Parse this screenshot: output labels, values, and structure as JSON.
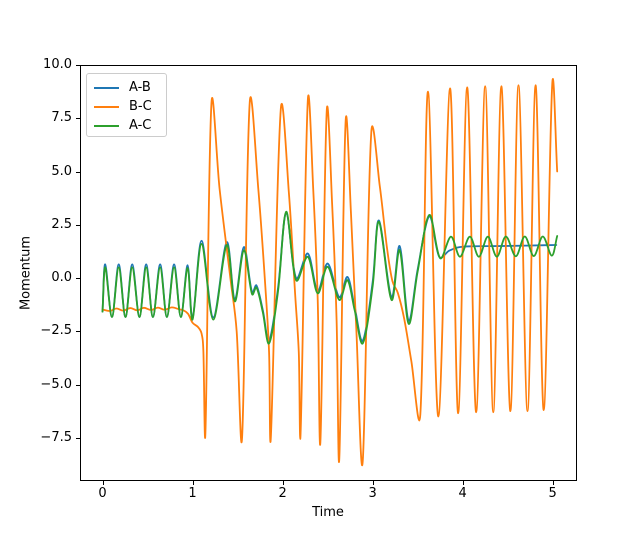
{
  "figure": {
    "background": "#ffffff"
  },
  "chart_data": {
    "type": "line",
    "title": "",
    "xlabel": "Time",
    "ylabel": "Momentum",
    "xlim": [
      -0.25,
      5.27
    ],
    "ylim": [
      -9.53,
      10.0
    ],
    "grid": false,
    "x_ticks": [
      0,
      1,
      2,
      3,
      4,
      5
    ],
    "x_tick_labels": [
      "0",
      "1",
      "2",
      "3",
      "4",
      "5"
    ],
    "y_ticks": [
      10.0,
      7.5,
      5.0,
      2.5,
      0.0,
      -2.5,
      -5.0,
      -7.5
    ],
    "y_tick_labels": [
      "10.0",
      "7.5",
      "5.0",
      "2.5",
      "0.0",
      "−2.5",
      "−5.0",
      "−7.5"
    ],
    "legend": {
      "position": "upper left",
      "entries": [
        "A-B",
        "B-C",
        "A-C"
      ]
    },
    "series": [
      {
        "name": "A-B",
        "color": "#1f77b4",
        "points": [
          [
            0,
            -1.58
          ],
          [
            0.03,
            0.64
          ],
          [
            0.105,
            -1.83
          ],
          [
            0.18,
            0.64
          ],
          [
            0.255,
            -1.83
          ],
          [
            0.33,
            0.64
          ],
          [
            0.41,
            -1.83
          ],
          [
            0.485,
            0.64
          ],
          [
            0.56,
            -1.83
          ],
          [
            0.64,
            0.64
          ],
          [
            0.715,
            -1.83
          ],
          [
            0.795,
            0.64
          ],
          [
            0.87,
            -1.83
          ],
          [
            0.945,
            0.6
          ],
          [
            1.0,
            -1.9
          ],
          [
            1.1,
            1.75
          ],
          [
            1.23,
            -1.85
          ],
          [
            1.38,
            1.68
          ],
          [
            1.47,
            -1.0
          ],
          [
            1.57,
            1.45
          ],
          [
            1.66,
            -0.65
          ],
          [
            1.71,
            -0.35
          ],
          [
            1.78,
            -1.5
          ],
          [
            1.85,
            -2.95
          ],
          [
            1.95,
            -0.45
          ],
          [
            2.04,
            3.06
          ],
          [
            2.15,
            0.0
          ],
          [
            2.28,
            1.15
          ],
          [
            2.39,
            -0.6
          ],
          [
            2.5,
            0.68
          ],
          [
            2.63,
            -0.9
          ],
          [
            2.72,
            0.05
          ],
          [
            2.8,
            -1.35
          ],
          [
            2.89,
            -2.95
          ],
          [
            3.0,
            -0.2
          ],
          [
            3.07,
            2.7
          ],
          [
            3.21,
            -0.9
          ],
          [
            3.3,
            1.5
          ],
          [
            3.4,
            -2.0
          ],
          [
            3.5,
            0.4
          ],
          [
            3.63,
            2.9
          ],
          [
            3.74,
            1.0
          ],
          [
            3.85,
            1.28
          ],
          [
            3.95,
            1.44
          ],
          [
            4.1,
            1.49
          ],
          [
            4.4,
            1.5
          ],
          [
            4.7,
            1.52
          ],
          [
            5.04,
            1.55
          ]
        ]
      },
      {
        "name": "B-C",
        "color": "#ff7f0e",
        "points": [
          [
            0,
            -1.48
          ],
          [
            0.08,
            -1.55
          ],
          [
            0.155,
            -1.43
          ],
          [
            0.23,
            -1.53
          ],
          [
            0.31,
            -1.41
          ],
          [
            0.385,
            -1.52
          ],
          [
            0.46,
            -1.4
          ],
          [
            0.54,
            -1.5
          ],
          [
            0.615,
            -1.39
          ],
          [
            0.69,
            -1.49
          ],
          [
            0.77,
            -1.38
          ],
          [
            0.845,
            -1.46
          ],
          [
            0.9,
            -1.52
          ],
          [
            0.95,
            -1.68
          ],
          [
            1.0,
            -2.1
          ],
          [
            1.06,
            -2.3
          ],
          [
            1.1,
            -2.6
          ],
          [
            1.12,
            -3.4
          ],
          [
            1.143,
            -7.26
          ],
          [
            1.21,
            8.2
          ],
          [
            1.3,
            4.2
          ],
          [
            1.42,
            0.0
          ],
          [
            1.49,
            -2.5
          ],
          [
            1.55,
            -7.5
          ],
          [
            1.635,
            8.23
          ],
          [
            1.73,
            4.2
          ],
          [
            1.81,
            -0.5
          ],
          [
            1.85,
            -3.5
          ],
          [
            1.87,
            -7.45
          ],
          [
            1.98,
            7.92
          ],
          [
            2.07,
            4.0
          ],
          [
            2.14,
            -0.8
          ],
          [
            2.18,
            -3.5
          ],
          [
            2.2,
            -7.29
          ],
          [
            2.28,
            8.32
          ],
          [
            2.34,
            4.2
          ],
          [
            2.39,
            -1.0
          ],
          [
            2.42,
            -7.68
          ],
          [
            2.49,
            7.81
          ],
          [
            2.55,
            3.5
          ],
          [
            2.6,
            -2.0
          ],
          [
            2.63,
            -8.47
          ],
          [
            2.7,
            7.34
          ],
          [
            2.76,
            3.0
          ],
          [
            2.82,
            -2.5
          ],
          [
            2.89,
            -8.62
          ],
          [
            2.985,
            6.82
          ],
          [
            3.08,
            4.3
          ],
          [
            3.16,
            1.4
          ],
          [
            3.22,
            -0.15
          ],
          [
            3.28,
            -0.7
          ],
          [
            3.35,
            -1.9
          ],
          [
            3.43,
            -3.9
          ],
          [
            3.53,
            -6.4
          ],
          [
            3.615,
            8.75
          ],
          [
            3.73,
            -6.5
          ],
          [
            3.86,
            8.9
          ],
          [
            3.95,
            -6.35
          ],
          [
            4.05,
            8.95
          ],
          [
            4.15,
            -6.3
          ],
          [
            4.25,
            9.0
          ],
          [
            4.34,
            -6.3
          ],
          [
            4.43,
            9.0
          ],
          [
            4.53,
            -6.25
          ],
          [
            4.62,
            9.05
          ],
          [
            4.72,
            -6.25
          ],
          [
            4.81,
            9.05
          ],
          [
            4.9,
            -6.2
          ],
          [
            4.995,
            9.1
          ],
          [
            5.05,
            5.0
          ]
        ]
      },
      {
        "name": "A-C",
        "color": "#2ca02c",
        "points": [
          [
            0,
            -1.58
          ],
          [
            0.03,
            0.5
          ],
          [
            0.105,
            -1.83
          ],
          [
            0.18,
            0.5
          ],
          [
            0.255,
            -1.83
          ],
          [
            0.33,
            0.5
          ],
          [
            0.41,
            -1.83
          ],
          [
            0.485,
            0.5
          ],
          [
            0.56,
            -1.83
          ],
          [
            0.64,
            0.5
          ],
          [
            0.715,
            -1.83
          ],
          [
            0.795,
            0.5
          ],
          [
            0.87,
            -1.83
          ],
          [
            0.945,
            0.47
          ],
          [
            1.0,
            -1.95
          ],
          [
            1.1,
            1.6
          ],
          [
            1.23,
            -1.95
          ],
          [
            1.38,
            1.55
          ],
          [
            1.47,
            -1.1
          ],
          [
            1.57,
            1.3
          ],
          [
            1.66,
            -0.75
          ],
          [
            1.71,
            -0.45
          ],
          [
            1.78,
            -1.6
          ],
          [
            1.85,
            -3.07
          ],
          [
            1.95,
            -0.6
          ],
          [
            2.04,
            3.11
          ],
          [
            2.15,
            -0.1
          ],
          [
            2.28,
            1.0
          ],
          [
            2.39,
            -0.72
          ],
          [
            2.5,
            0.53
          ],
          [
            2.63,
            -1.03
          ],
          [
            2.72,
            -0.1
          ],
          [
            2.8,
            -1.5
          ],
          [
            2.89,
            -3.07
          ],
          [
            3.0,
            -0.4
          ],
          [
            3.07,
            2.64
          ],
          [
            3.21,
            -1.03
          ],
          [
            3.3,
            1.31
          ],
          [
            3.4,
            -2.15
          ],
          [
            3.5,
            0.3
          ],
          [
            3.63,
            2.96
          ],
          [
            3.75,
            0.93
          ],
          [
            3.87,
            1.94
          ],
          [
            3.97,
            1.0
          ],
          [
            4.08,
            1.94
          ],
          [
            4.18,
            1.0
          ],
          [
            4.28,
            1.94
          ],
          [
            4.38,
            1.0
          ],
          [
            4.48,
            1.95
          ],
          [
            4.59,
            1.02
          ],
          [
            4.69,
            1.95
          ],
          [
            4.79,
            1.03
          ],
          [
            4.89,
            1.95
          ],
          [
            4.99,
            1.05
          ],
          [
            5.05,
            1.97
          ]
        ]
      }
    ]
  }
}
